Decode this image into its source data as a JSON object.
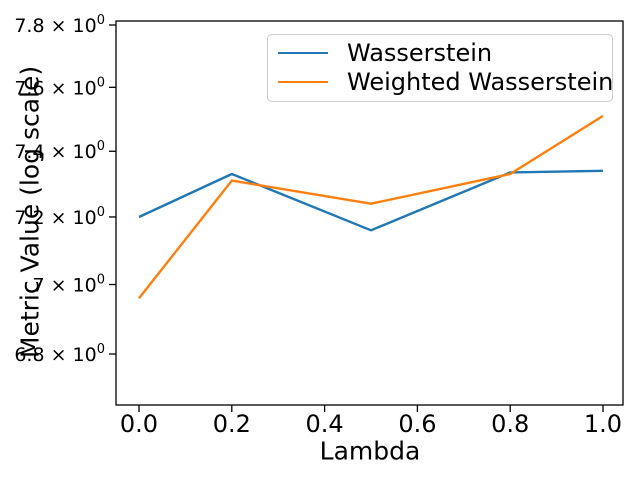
{
  "figure": {
    "background": "#ffffff",
    "axis_color": "#000000"
  },
  "chart_data": {
    "type": "line",
    "title": "",
    "xlabel": "Lambda",
    "ylabel": "Metric Value (log scale)",
    "yscale": "log",
    "grid": false,
    "legend_position": "upper right",
    "xlim": [
      -0.05,
      1.05
    ],
    "ylim": [
      6.66,
      7.81
    ],
    "x": [
      0.0,
      0.2,
      0.5,
      0.8,
      1.0
    ],
    "series": [
      {
        "name": "Wasserstein",
        "color": "#1f77b4",
        "values": [
          7.2,
          7.33,
          7.16,
          7.335,
          7.34
        ]
      },
      {
        "name": "Weighted Wasserstein",
        "color": "#ff7f0e",
        "values": [
          6.96,
          7.31,
          7.24,
          7.33,
          7.51
        ]
      }
    ],
    "x_ticks": [
      {
        "value": 0.0,
        "label": "0.0"
      },
      {
        "value": 0.2,
        "label": "0.2"
      },
      {
        "value": 0.4,
        "label": "0.4"
      },
      {
        "value": 0.6,
        "label": "0.6"
      },
      {
        "value": 0.8,
        "label": "0.8"
      },
      {
        "value": 1.0,
        "label": "1.0"
      }
    ],
    "y_ticks": [
      {
        "value": 7.8,
        "mantissa": "7.8"
      },
      {
        "value": 7.6,
        "mantissa": "7.6"
      },
      {
        "value": 7.4,
        "mantissa": "7.4"
      },
      {
        "value": 7.2,
        "mantissa": "7.2"
      },
      {
        "value": 7.0,
        "mantissa": "7"
      },
      {
        "value": 6.8,
        "mantissa": "6.8"
      }
    ],
    "y_tick_base": " × 10",
    "y_tick_exponent": "0"
  }
}
